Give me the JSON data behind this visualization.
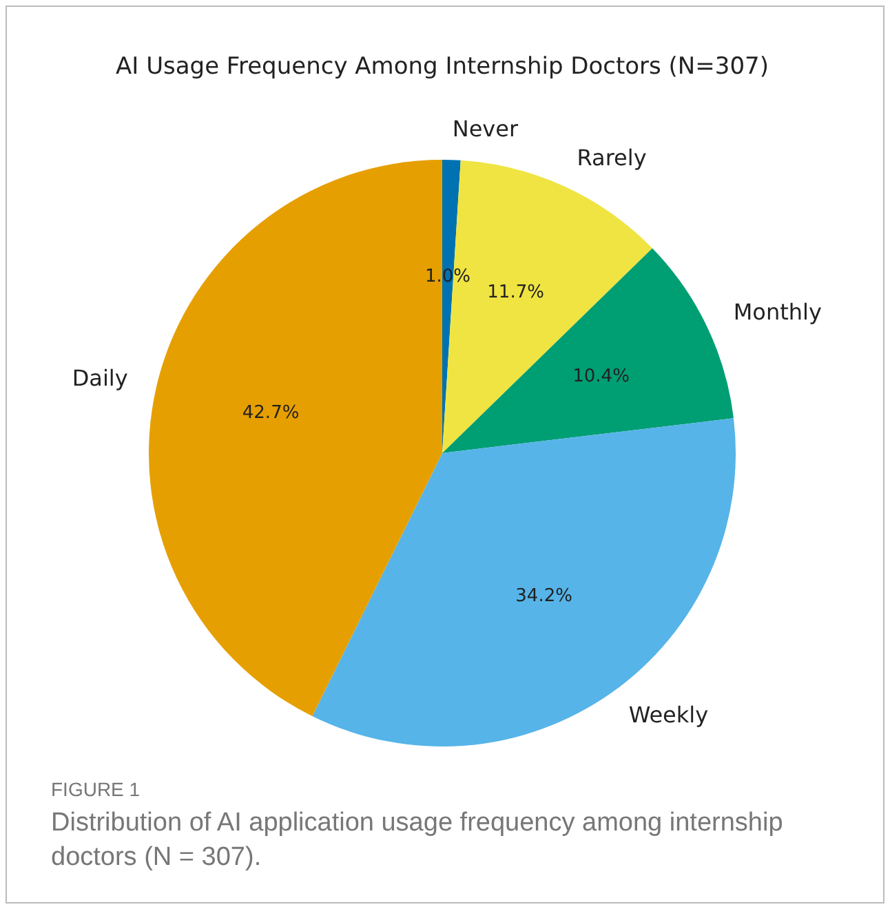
{
  "chart_data": {
    "type": "pie",
    "title": "AI Usage Frequency Among Internship Doctors (N=307)",
    "categories": [
      "Never",
      "Rarely",
      "Monthly",
      "Weekly",
      "Daily"
    ],
    "values": [
      1.0,
      11.7,
      10.4,
      34.2,
      42.7
    ],
    "value_labels": [
      "1.0%",
      "11.7%",
      "10.4%",
      "34.2%",
      "42.7%"
    ],
    "colors": [
      "#0072b2",
      "#f0e442",
      "#009e73",
      "#56b4e9",
      "#e69f00"
    ],
    "legend": false,
    "annotations": [
      "FIGURE 1",
      "Distribution of AI application usage frequency among internship doctors (N = 307)."
    ]
  }
}
